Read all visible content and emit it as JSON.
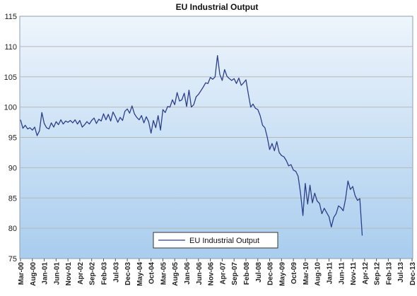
{
  "chart_data": {
    "type": "line",
    "title": "EU Industrial Output",
    "ylim": [
      75,
      115
    ],
    "y_ticks": [
      75,
      80,
      85,
      90,
      95,
      100,
      105,
      110,
      115
    ],
    "x_tick_labels": [
      "Mar-00",
      "Aug-00",
      "Jan-01",
      "Jun-01",
      "Nov-01",
      "Apr-02",
      "Sep-02",
      "Feb-03",
      "Jul-03",
      "Dec-03",
      "May-04",
      "Oct-04",
      "Mar-05",
      "Aug-05",
      "Jan-06",
      "Jun-06",
      "Nov-06",
      "Apr-07",
      "Sep-07",
      "Feb-08",
      "Jul-08",
      "Dec-08",
      "May-09",
      "Oct-09",
      "Mar-10",
      "Aug-10",
      "Jan-11",
      "Jun-11",
      "Nov-11",
      "Apr-12",
      "Sep-12",
      "Feb-13",
      "Jul-13",
      "Dec-13"
    ],
    "x_range": [
      "2000-03",
      "2013-12"
    ],
    "grid": true,
    "legend_position": "bottom-center",
    "colors": {
      "line": "#2b3f8c",
      "plot_bg_top": "#eef5fc",
      "plot_bg_bottom": "#a9cdee",
      "grid": "#b8b8b8"
    },
    "series": [
      {
        "name": "EU Industrial Output",
        "points": [
          [
            "2000-03",
            97.9
          ],
          [
            "2000-04",
            96.5
          ],
          [
            "2000-05",
            97.0
          ],
          [
            "2000-06",
            96.4
          ],
          [
            "2000-07",
            96.6
          ],
          [
            "2000-08",
            96.2
          ],
          [
            "2000-09",
            96.7
          ],
          [
            "2000-10",
            95.3
          ],
          [
            "2000-11",
            96.1
          ],
          [
            "2000-12",
            99.1
          ],
          [
            "2001-01",
            97.3
          ],
          [
            "2001-02",
            96.6
          ],
          [
            "2001-03",
            96.4
          ],
          [
            "2001-04",
            97.4
          ],
          [
            "2001-05",
            96.7
          ],
          [
            "2001-06",
            97.6
          ],
          [
            "2001-07",
            97.1
          ],
          [
            "2001-08",
            97.9
          ],
          [
            "2001-09",
            97.2
          ],
          [
            "2001-10",
            97.7
          ],
          [
            "2001-11",
            97.5
          ],
          [
            "2001-12",
            97.8
          ],
          [
            "2002-01",
            97.4
          ],
          [
            "2002-02",
            97.9
          ],
          [
            "2002-03",
            97.2
          ],
          [
            "2002-04",
            97.8
          ],
          [
            "2002-05",
            96.7
          ],
          [
            "2002-06",
            97.1
          ],
          [
            "2002-07",
            97.6
          ],
          [
            "2002-08",
            97.2
          ],
          [
            "2002-09",
            97.8
          ],
          [
            "2002-10",
            98.2
          ],
          [
            "2002-11",
            97.3
          ],
          [
            "2002-12",
            98.0
          ],
          [
            "2003-01",
            97.7
          ],
          [
            "2003-02",
            98.9
          ],
          [
            "2003-03",
            97.9
          ],
          [
            "2003-04",
            98.8
          ],
          [
            "2003-05",
            97.7
          ],
          [
            "2003-06",
            99.2
          ],
          [
            "2003-07",
            98.4
          ],
          [
            "2003-08",
            97.5
          ],
          [
            "2003-09",
            98.3
          ],
          [
            "2003-10",
            97.8
          ],
          [
            "2003-11",
            99.3
          ],
          [
            "2003-12",
            99.7
          ],
          [
            "2004-01",
            99.0
          ],
          [
            "2004-02",
            100.2
          ],
          [
            "2004-03",
            98.9
          ],
          [
            "2004-04",
            98.3
          ],
          [
            "2004-05",
            97.9
          ],
          [
            "2004-06",
            98.6
          ],
          [
            "2004-07",
            97.4
          ],
          [
            "2004-08",
            98.4
          ],
          [
            "2004-09",
            97.6
          ],
          [
            "2004-10",
            95.7
          ],
          [
            "2004-11",
            97.8
          ],
          [
            "2004-12",
            96.6
          ],
          [
            "2005-01",
            98.6
          ],
          [
            "2005-02",
            96.2
          ],
          [
            "2005-03",
            99.6
          ],
          [
            "2005-04",
            99.1
          ],
          [
            "2005-05",
            100.1
          ],
          [
            "2005-06",
            100.0
          ],
          [
            "2005-07",
            101.2
          ],
          [
            "2005-08",
            100.4
          ],
          [
            "2005-09",
            102.4
          ],
          [
            "2005-10",
            101.0
          ],
          [
            "2005-11",
            101.2
          ],
          [
            "2005-12",
            102.3
          ],
          [
            "2006-01",
            100.1
          ],
          [
            "2006-02",
            102.8
          ],
          [
            "2006-03",
            100.0
          ],
          [
            "2006-04",
            100.4
          ],
          [
            "2006-05",
            101.7
          ],
          [
            "2006-06",
            102.1
          ],
          [
            "2006-07",
            102.7
          ],
          [
            "2006-08",
            103.3
          ],
          [
            "2006-09",
            104.0
          ],
          [
            "2006-10",
            103.9
          ],
          [
            "2006-11",
            104.9
          ],
          [
            "2006-12",
            104.6
          ],
          [
            "2007-01",
            105.0
          ],
          [
            "2007-02",
            108.5
          ],
          [
            "2007-03",
            105.4
          ],
          [
            "2007-04",
            104.4
          ],
          [
            "2007-05",
            106.2
          ],
          [
            "2007-06",
            105.1
          ],
          [
            "2007-07",
            104.7
          ],
          [
            "2007-08",
            104.4
          ],
          [
            "2007-09",
            104.7
          ],
          [
            "2007-10",
            103.9
          ],
          [
            "2007-11",
            104.8
          ],
          [
            "2007-12",
            103.6
          ],
          [
            "2008-01",
            104.0
          ],
          [
            "2008-02",
            104.5
          ],
          [
            "2008-03",
            102.2
          ],
          [
            "2008-04",
            100.0
          ],
          [
            "2008-05",
            100.5
          ],
          [
            "2008-06",
            99.8
          ],
          [
            "2008-07",
            99.6
          ],
          [
            "2008-08",
            98.6
          ],
          [
            "2008-09",
            97.0
          ],
          [
            "2008-10",
            96.6
          ],
          [
            "2008-11",
            95.0
          ],
          [
            "2008-12",
            93.0
          ],
          [
            "2009-01",
            94.0
          ],
          [
            "2009-02",
            92.8
          ],
          [
            "2009-03",
            94.3
          ],
          [
            "2009-04",
            92.5
          ],
          [
            "2009-05",
            92.0
          ],
          [
            "2009-06",
            91.8
          ],
          [
            "2009-07",
            91.2
          ],
          [
            "2009-08",
            90.3
          ],
          [
            "2009-09",
            90.5
          ],
          [
            "2009-10",
            89.6
          ],
          [
            "2009-11",
            89.4
          ],
          [
            "2009-12",
            88.6
          ],
          [
            "2010-01",
            85.8
          ],
          [
            "2010-02",
            82.1
          ],
          [
            "2010-03",
            87.4
          ],
          [
            "2010-04",
            84.0
          ],
          [
            "2010-05",
            87.1
          ],
          [
            "2010-06",
            84.2
          ],
          [
            "2010-07",
            85.8
          ],
          [
            "2010-08",
            84.5
          ],
          [
            "2010-09",
            84.1
          ],
          [
            "2010-10",
            82.4
          ],
          [
            "2010-11",
            83.3
          ],
          [
            "2010-12",
            82.6
          ],
          [
            "2011-01",
            81.9
          ],
          [
            "2011-02",
            80.2
          ],
          [
            "2011-03",
            81.8
          ],
          [
            "2011-04",
            82.4
          ],
          [
            "2011-05",
            83.7
          ],
          [
            "2011-06",
            83.4
          ],
          [
            "2011-07",
            82.9
          ],
          [
            "2011-08",
            84.9
          ],
          [
            "2011-09",
            87.8
          ],
          [
            "2011-10",
            86.4
          ],
          [
            "2011-11",
            86.9
          ],
          [
            "2011-12",
            85.4
          ],
          [
            "2012-01",
            84.6
          ],
          [
            "2012-02",
            84.9
          ],
          [
            "2012-03",
            78.8
          ]
        ]
      }
    ]
  }
}
